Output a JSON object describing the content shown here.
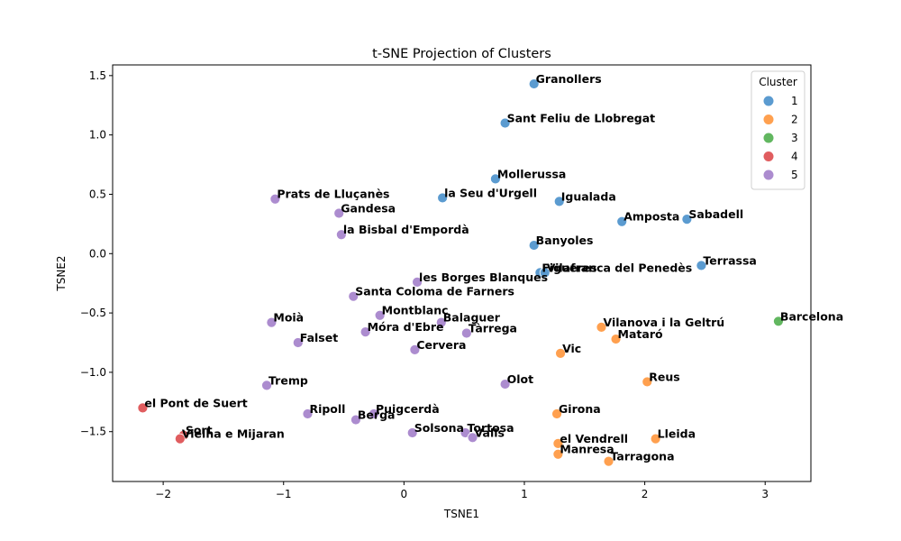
{
  "chart_data": {
    "type": "scatter",
    "title": "t-SNE Projection of Clusters",
    "xlabel": "TSNE1",
    "ylabel": "TSNE2",
    "xlim": [
      -2.42,
      3.38
    ],
    "ylim": [
      -1.92,
      1.59
    ],
    "xticks": [
      -2,
      -1,
      0,
      1,
      2,
      3
    ],
    "yticks": [
      -1.5,
      -1.0,
      -0.5,
      0.0,
      0.5,
      1.0,
      1.5
    ],
    "xtick_labels": [
      "−2",
      "−1",
      "0",
      "1",
      "2",
      "3"
    ],
    "ytick_labels": [
      "−1.5",
      "−1.0",
      "−0.5",
      "0.0",
      "0.5",
      "1.0",
      "1.5"
    ],
    "grid": false,
    "legend": {
      "title": "Cluster",
      "placement": "top-right",
      "entries": [
        {
          "label": "1",
          "color": "#5b9bd0"
        },
        {
          "label": "2",
          "color": "#ffa04f"
        },
        {
          "label": "3",
          "color": "#62b760"
        },
        {
          "label": "4",
          "color": "#e05d5f"
        },
        {
          "label": "5",
          "color": "#ac8ccf"
        }
      ]
    },
    "points": [
      {
        "label": "Granollers",
        "x": 1.08,
        "y": 1.43,
        "cluster": 1
      },
      {
        "label": "Sant Feliu de Llobregat",
        "x": 0.84,
        "y": 1.1,
        "cluster": 1
      },
      {
        "label": "Mollerussa",
        "x": 0.76,
        "y": 0.63,
        "cluster": 1
      },
      {
        "label": "la Seu d'Urgell",
        "x": 0.32,
        "y": 0.47,
        "cluster": 1
      },
      {
        "label": "Igualada",
        "x": 1.29,
        "y": 0.44,
        "cluster": 1
      },
      {
        "label": "Amposta",
        "x": 1.81,
        "y": 0.27,
        "cluster": 1
      },
      {
        "label": "Sabadell",
        "x": 2.35,
        "y": 0.29,
        "cluster": 1
      },
      {
        "label": "Banyoles",
        "x": 1.08,
        "y": 0.07,
        "cluster": 1
      },
      {
        "label": "Terrassa",
        "x": 2.47,
        "y": -0.1,
        "cluster": 1
      },
      {
        "label": "Figueres",
        "x": 1.13,
        "y": -0.16,
        "cluster": 1
      },
      {
        "label": "Vilafranca del Penedès",
        "x": 1.17,
        "y": -0.16,
        "cluster": 1
      },
      {
        "label": "Vilanova i la Geltrú",
        "x": 1.64,
        "y": -0.62,
        "cluster": 2
      },
      {
        "label": "Mataró",
        "x": 1.76,
        "y": -0.72,
        "cluster": 2
      },
      {
        "label": "Vic",
        "x": 1.3,
        "y": -0.84,
        "cluster": 2
      },
      {
        "label": "Reus",
        "x": 2.02,
        "y": -1.08,
        "cluster": 2
      },
      {
        "label": "Girona",
        "x": 1.27,
        "y": -1.35,
        "cluster": 2
      },
      {
        "label": "Lleida",
        "x": 2.09,
        "y": -1.56,
        "cluster": 2
      },
      {
        "label": "el Vendrell",
        "x": 1.28,
        "y": -1.6,
        "cluster": 2
      },
      {
        "label": "Manresa",
        "x": 1.28,
        "y": -1.69,
        "cluster": 2
      },
      {
        "label": "Tarragona",
        "x": 1.7,
        "y": -1.75,
        "cluster": 2
      },
      {
        "label": "Barcelona",
        "x": 3.11,
        "y": -0.57,
        "cluster": 3
      },
      {
        "label": "el Pont de Suert",
        "x": -2.17,
        "y": -1.3,
        "cluster": 4
      },
      {
        "label": "Sort",
        "x": -1.83,
        "y": -1.53,
        "cluster": 4
      },
      {
        "label": "Vielha e Mijaran",
        "x": -1.86,
        "y": -1.56,
        "cluster": 4
      },
      {
        "label": "Prats de Lluçanès",
        "x": -1.07,
        "y": 0.46,
        "cluster": 5
      },
      {
        "label": "Gandesa",
        "x": -0.54,
        "y": 0.34,
        "cluster": 5
      },
      {
        "label": "la Bisbal d'Empordà",
        "x": -0.52,
        "y": 0.16,
        "cluster": 5
      },
      {
        "label": "les Borges Blanques",
        "x": 0.11,
        "y": -0.24,
        "cluster": 5
      },
      {
        "label": "Santa Coloma de Farners",
        "x": -0.42,
        "y": -0.36,
        "cluster": 5
      },
      {
        "label": "Montblanc",
        "x": -0.2,
        "y": -0.52,
        "cluster": 5
      },
      {
        "label": "Moià",
        "x": -1.1,
        "y": -0.58,
        "cluster": 5
      },
      {
        "label": "Balaguer",
        "x": 0.31,
        "y": -0.58,
        "cluster": 5
      },
      {
        "label": "Móra d'Ebre",
        "x": -0.32,
        "y": -0.66,
        "cluster": 5
      },
      {
        "label": "Tàrrega",
        "x": 0.52,
        "y": -0.67,
        "cluster": 5
      },
      {
        "label": "Falset",
        "x": -0.88,
        "y": -0.75,
        "cluster": 5
      },
      {
        "label": "Cervera",
        "x": 0.09,
        "y": -0.81,
        "cluster": 5
      },
      {
        "label": "Tremp",
        "x": -1.14,
        "y": -1.11,
        "cluster": 5
      },
      {
        "label": "Olot",
        "x": 0.84,
        "y": -1.1,
        "cluster": 5
      },
      {
        "label": "Ripoll",
        "x": -0.8,
        "y": -1.35,
        "cluster": 5
      },
      {
        "label": "Puigcerdà",
        "x": -0.25,
        "y": -1.35,
        "cluster": 5
      },
      {
        "label": "Berga",
        "x": -0.4,
        "y": -1.4,
        "cluster": 5
      },
      {
        "label": "Solsona",
        "x": 0.07,
        "y": -1.51,
        "cluster": 5
      },
      {
        "label": "Tortosa",
        "x": 0.51,
        "y": -1.51,
        "cluster": 5
      },
      {
        "label": "Valls",
        "x": 0.57,
        "y": -1.55,
        "cluster": 5
      }
    ]
  }
}
